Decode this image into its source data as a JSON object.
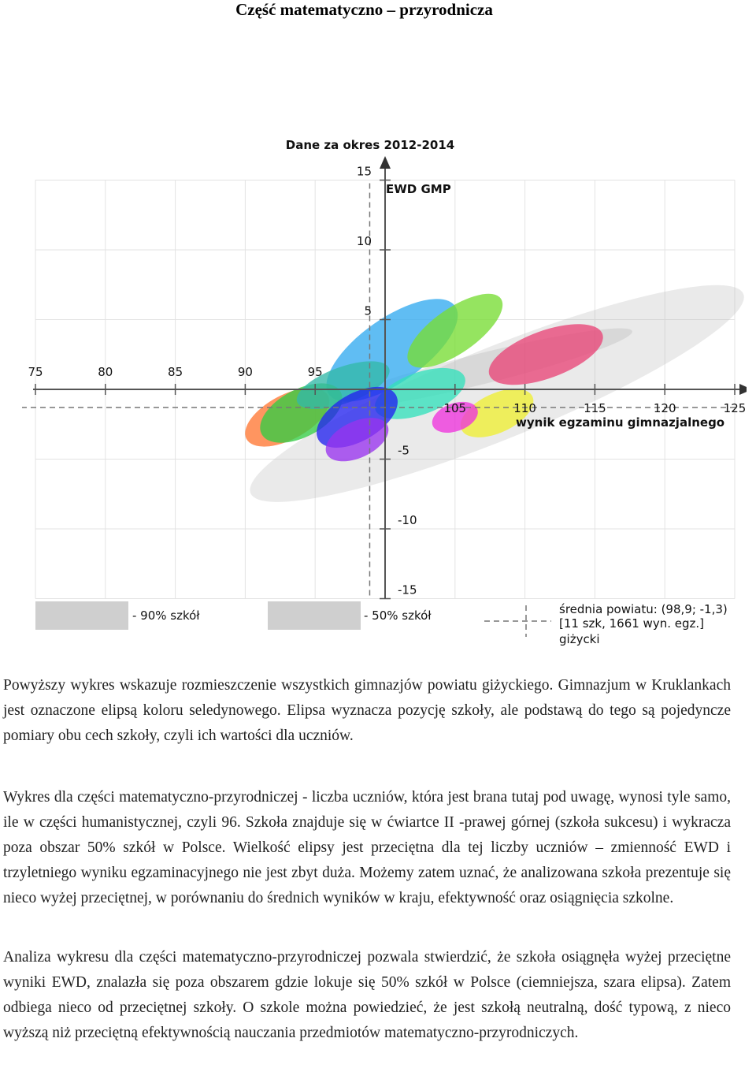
{
  "page_title": "Część matematyczno – przyrodnicza",
  "chart_data": {
    "type": "scatter",
    "title": "Dane za okres 2012-2014",
    "xlabel": "wynik egzaminu gimnazjalnego",
    "ylabel": "EWD GMP",
    "x_ticks": [
      "75",
      "80",
      "85",
      "90",
      "95",
      "105",
      "110",
      "115",
      "120",
      "125"
    ],
    "y_ticks": [
      "15",
      "10",
      "5",
      "-5",
      "-10",
      "-15"
    ],
    "xlim": [
      73,
      127
    ],
    "ylim": [
      -17,
      17
    ],
    "grid": true,
    "legend": {
      "band90_label": "- 90% szkół",
      "band50_label": "- 50% szkół",
      "mean_line1": "średnia powiatu: (98,9; -1,3)",
      "mean_line2": "[11 szk, 1661 wyn. egz.]",
      "mean_line3": "giżycki"
    },
    "district_mean": {
      "x": 98.9,
      "y": -1.3
    },
    "bands": [
      {
        "name": "90% szkół",
        "cx": 108,
        "cy": -0.3,
        "rx": 19,
        "ry": 3.3,
        "angle": 22,
        "color": "#bbbbbb",
        "opacity": 0.3
      },
      {
        "name": "50% szkół",
        "cx": 107,
        "cy": 1.5,
        "rx": 11,
        "ry": 1.1,
        "angle": 14,
        "color": "#aaaaaa",
        "opacity": 0.28
      }
    ],
    "schools": [
      {
        "cx": 100.5,
        "cy": 2.8,
        "rx": 5.5,
        "ry": 2.3,
        "angle": 35,
        "color": "#33aaf0"
      },
      {
        "cx": 105,
        "cy": 4.2,
        "rx": 4,
        "ry": 1.6,
        "angle": 35,
        "color": "#77dd33"
      },
      {
        "cx": 111.5,
        "cy": 2.5,
        "rx": 4.3,
        "ry": 1.7,
        "angle": 20,
        "color": "#e84577"
      },
      {
        "cx": 93,
        "cy": -2,
        "rx": 3.3,
        "ry": 1.6,
        "angle": 28,
        "color": "#ff7733"
      },
      {
        "cx": 94,
        "cy": -1.7,
        "rx": 3.2,
        "ry": 1.7,
        "angle": 28,
        "color": "#33cc44"
      },
      {
        "cx": 97,
        "cy": 0.3,
        "rx": 3.5,
        "ry": 1.3,
        "angle": 20,
        "color": "#33b8a8"
      },
      {
        "cx": 102.5,
        "cy": -0.3,
        "rx": 3.4,
        "ry": 1.5,
        "angle": 20,
        "color": "#33e0bb"
      },
      {
        "cx": 98,
        "cy": -2,
        "rx": 3.2,
        "ry": 1.7,
        "angle": 30,
        "color": "#2222ee"
      },
      {
        "cx": 98,
        "cy": -3.6,
        "rx": 2.4,
        "ry": 1.3,
        "angle": 25,
        "color": "#9933ee"
      },
      {
        "cx": 108,
        "cy": -1.7,
        "rx": 2.8,
        "ry": 1.4,
        "angle": 25,
        "color": "#eeee33"
      },
      {
        "cx": 105,
        "cy": -2,
        "rx": 1.7,
        "ry": 1,
        "angle": 20,
        "color": "#ee33dd"
      }
    ]
  },
  "paragraphs": [
    "Powyższy wykres wskazuje rozmieszczenie wszystkich gimnazjów powiatu giżyckiego. Gimnazjum w Kruklankach jest oznaczone elipsą koloru seledynowego. Elipsa wyznacza pozycję szkoły, ale podstawą do tego są pojedyncze pomiary obu cech szkoły, czyli ich wartości dla uczniów.",
    "Wykres dla części matematyczno-przyrodniczej - liczba uczniów, która jest brana tutaj pod uwagę, wynosi tyle samo, ile w części humanistycznej, czyli 96. Szkoła znajduje się w ćwiartce II -prawej górnej (szkoła sukcesu) i wykracza poza obszar 50% szkół w Polsce. Wielkość elipsy jest przeciętna dla tej liczby uczniów – zmienność EWD i trzyletniego wyniku egzaminacyjnego nie jest zbyt duża. Możemy zatem uznać, że analizowana szkoła prezentuje się nieco wyżej przeciętnej, w porównaniu do średnich wyników w kraju, efektywność oraz osiągnięcia szkolne.",
    "Analiza wykresu dla części matematyczno-przyrodniczej pozwala stwierdzić, że szkoła osiągnęła wyżej przeciętne wyniki EWD, znalazła się poza obszarem gdzie lokuje się 50% szkół w Polsce (ciemniejsza, szara elipsa). Zatem odbiega nieco od przeciętnej szkoły. O szkole można powiedzieć, że jest szkołą neutralną, dość typową, z nieco wyższą niż przeciętną efektywnością nauczania przedmiotów matematyczno-przyrodniczych."
  ]
}
